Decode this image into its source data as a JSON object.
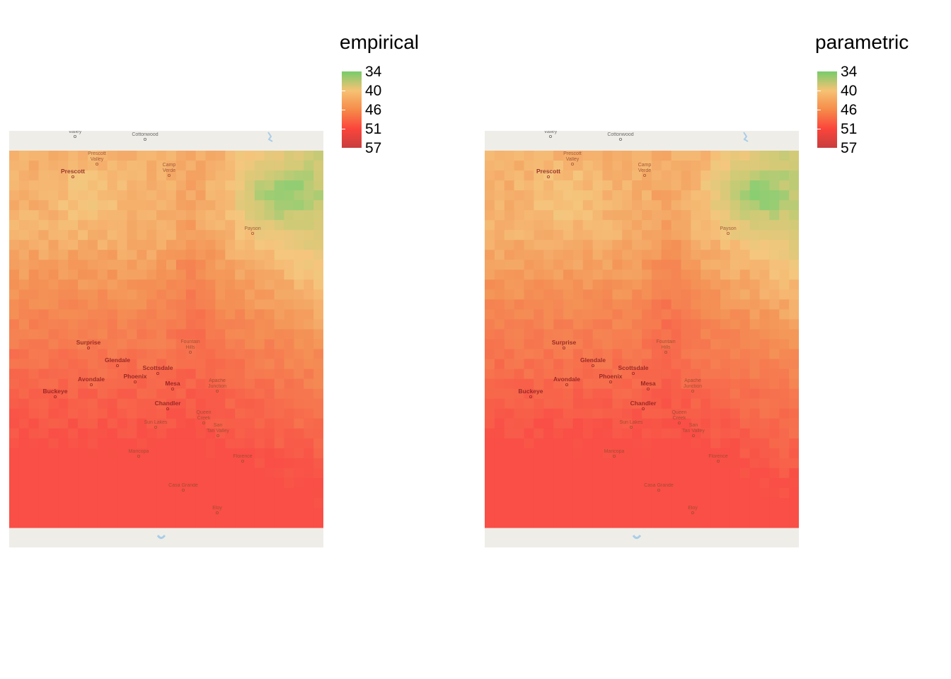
{
  "panels": [
    {
      "legend": {
        "title": "empirical",
        "labels": [
          "34",
          "40",
          "46",
          "51",
          "57"
        ],
        "colors": [
          "#77cc6a",
          "#f6c274",
          "#f68b4a",
          "#fb453b",
          "#c73e3e"
        ]
      },
      "places": [
        {
          "name": "Valley",
          "type": "tiny"
        },
        {
          "name": "Cottonwood",
          "type": "tiny"
        },
        {
          "name": "Prescott Valley",
          "type": "small"
        },
        {
          "name": "Prescott",
          "type": "bold"
        },
        {
          "name": "Camp Verde",
          "type": "small"
        },
        {
          "name": "Payson",
          "type": "small"
        },
        {
          "name": "Surprise",
          "type": "bold"
        },
        {
          "name": "Fountain Hills",
          "type": "small"
        },
        {
          "name": "Glendale",
          "type": "bold"
        },
        {
          "name": "Scottsdale",
          "type": "bold"
        },
        {
          "name": "Phoenix",
          "type": "bold"
        },
        {
          "name": "Avondale",
          "type": "bold"
        },
        {
          "name": "Mesa",
          "type": "bold"
        },
        {
          "name": "Apache Junction",
          "type": "small"
        },
        {
          "name": "Buckeye",
          "type": "bold"
        },
        {
          "name": "Chandler",
          "type": "bold"
        },
        {
          "name": "Queen Creek",
          "type": "small"
        },
        {
          "name": "Sun Lakes",
          "type": "small"
        },
        {
          "name": "San Tan Valley",
          "type": "small"
        },
        {
          "name": "Maricopa",
          "type": "small"
        },
        {
          "name": "Florence",
          "type": "small"
        },
        {
          "name": "Casa Grande",
          "type": "small"
        },
        {
          "name": "Eloy",
          "type": "small"
        }
      ]
    },
    {
      "legend": {
        "title": "parametric",
        "labels": [
          "34",
          "40",
          "46",
          "51",
          "57"
        ],
        "colors": [
          "#77cc6a",
          "#f6c274",
          "#f68b4a",
          "#fb453b",
          "#c73e3e"
        ]
      },
      "places": [
        {
          "name": "Valley",
          "type": "tiny"
        },
        {
          "name": "Cottonwood",
          "type": "tiny"
        },
        {
          "name": "Prescott Valley",
          "type": "small"
        },
        {
          "name": "Prescott",
          "type": "bold"
        },
        {
          "name": "Camp Verde",
          "type": "small"
        },
        {
          "name": "Payson",
          "type": "small"
        },
        {
          "name": "Surprise",
          "type": "bold"
        },
        {
          "name": "Fountain Hills",
          "type": "small"
        },
        {
          "name": "Glendale",
          "type": "bold"
        },
        {
          "name": "Scottsdale",
          "type": "bold"
        },
        {
          "name": "Phoenix",
          "type": "bold"
        },
        {
          "name": "Avondale",
          "type": "bold"
        },
        {
          "name": "Mesa",
          "type": "bold"
        },
        {
          "name": "Apache Junction",
          "type": "small"
        },
        {
          "name": "Buckeye",
          "type": "bold"
        },
        {
          "name": "Chandler",
          "type": "bold"
        },
        {
          "name": "Queen Creek",
          "type": "small"
        },
        {
          "name": "Sun Lakes",
          "type": "small"
        },
        {
          "name": "San Tan Valley",
          "type": "small"
        },
        {
          "name": "Maricopa",
          "type": "small"
        },
        {
          "name": "Florence",
          "type": "small"
        },
        {
          "name": "Casa Grande",
          "type": "small"
        },
        {
          "name": "Eloy",
          "type": "small"
        }
      ]
    }
  ],
  "colors": {
    "basemap": "#efede8",
    "water": "#a9cde8"
  }
}
